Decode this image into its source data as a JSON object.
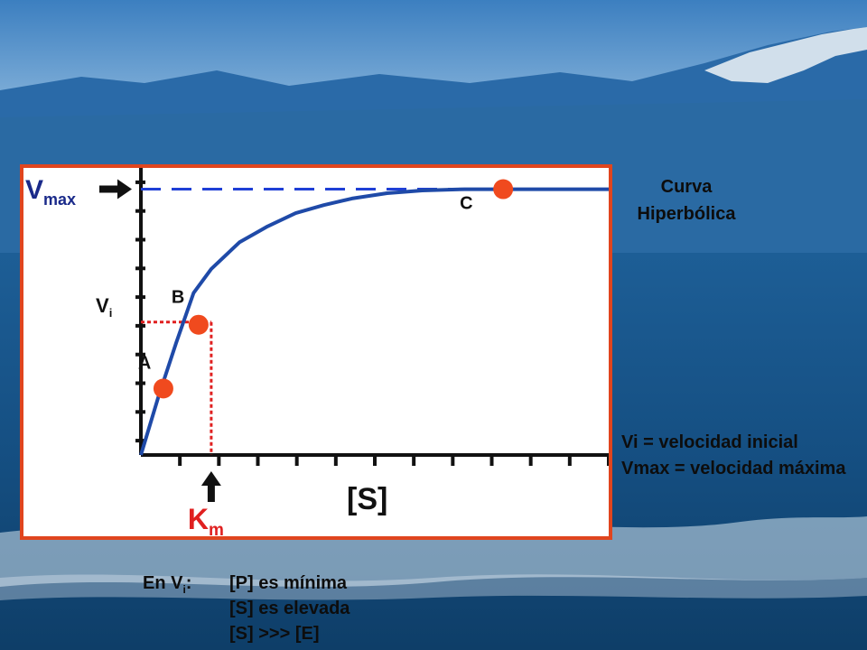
{
  "chart_data": {
    "type": "line",
    "title": "",
    "xlabel": "[S]",
    "ylabel_main": "V",
    "ylabel_sub": "i",
    "vmax_label_main": "V",
    "vmax_label_sub": "max",
    "km_label_main": "K",
    "km_label_sub": "m",
    "vmax": 1.0,
    "km": 1.0,
    "xlim": [
      0,
      6.65
    ],
    "ylim": [
      0,
      1.08
    ],
    "series": [
      {
        "name": "",
        "x": [
          0,
          0.25,
          0.5,
          0.75,
          1.0,
          1.4,
          1.8,
          2.2,
          2.6,
          3.0,
          3.5,
          4.0,
          4.6,
          5.2,
          5.8,
          6.65
        ],
        "y": [
          0,
          0.22,
          0.42,
          0.61,
          0.7,
          0.8,
          0.86,
          0.91,
          0.94,
          0.965,
          0.985,
          0.995,
          1.0,
          1.0,
          1.0,
          1.0
        ]
      }
    ],
    "points": [
      {
        "label": "A",
        "x": 0.32,
        "y": 0.25
      },
      {
        "label": "B",
        "x": 0.82,
        "y": 0.49
      },
      {
        "label": "C",
        "x": 5.15,
        "y": 1.0
      }
    ],
    "grid": false,
    "colors": {
      "curve": "#1f4aa8",
      "vmax_line": "#1f3fd6",
      "km_guides": "#e02020",
      "points": "#f04a1e",
      "frame": "#e0451e",
      "km_text": "#e02020"
    }
  },
  "side": {
    "curve_type_line1": "Curva",
    "curve_type_line2": "Hiperbólica",
    "legend_vi": "Vi = velocidad inicial",
    "legend_vmax": "Vmax = velocidad máxima",
    "note_prefix_main": "En V",
    "note_prefix_sub": "i",
    "note_prefix_end": ":",
    "note_items": [
      "[P] es mínima",
      "[S] es elevada",
      "[S] >>> [E]"
    ]
  }
}
